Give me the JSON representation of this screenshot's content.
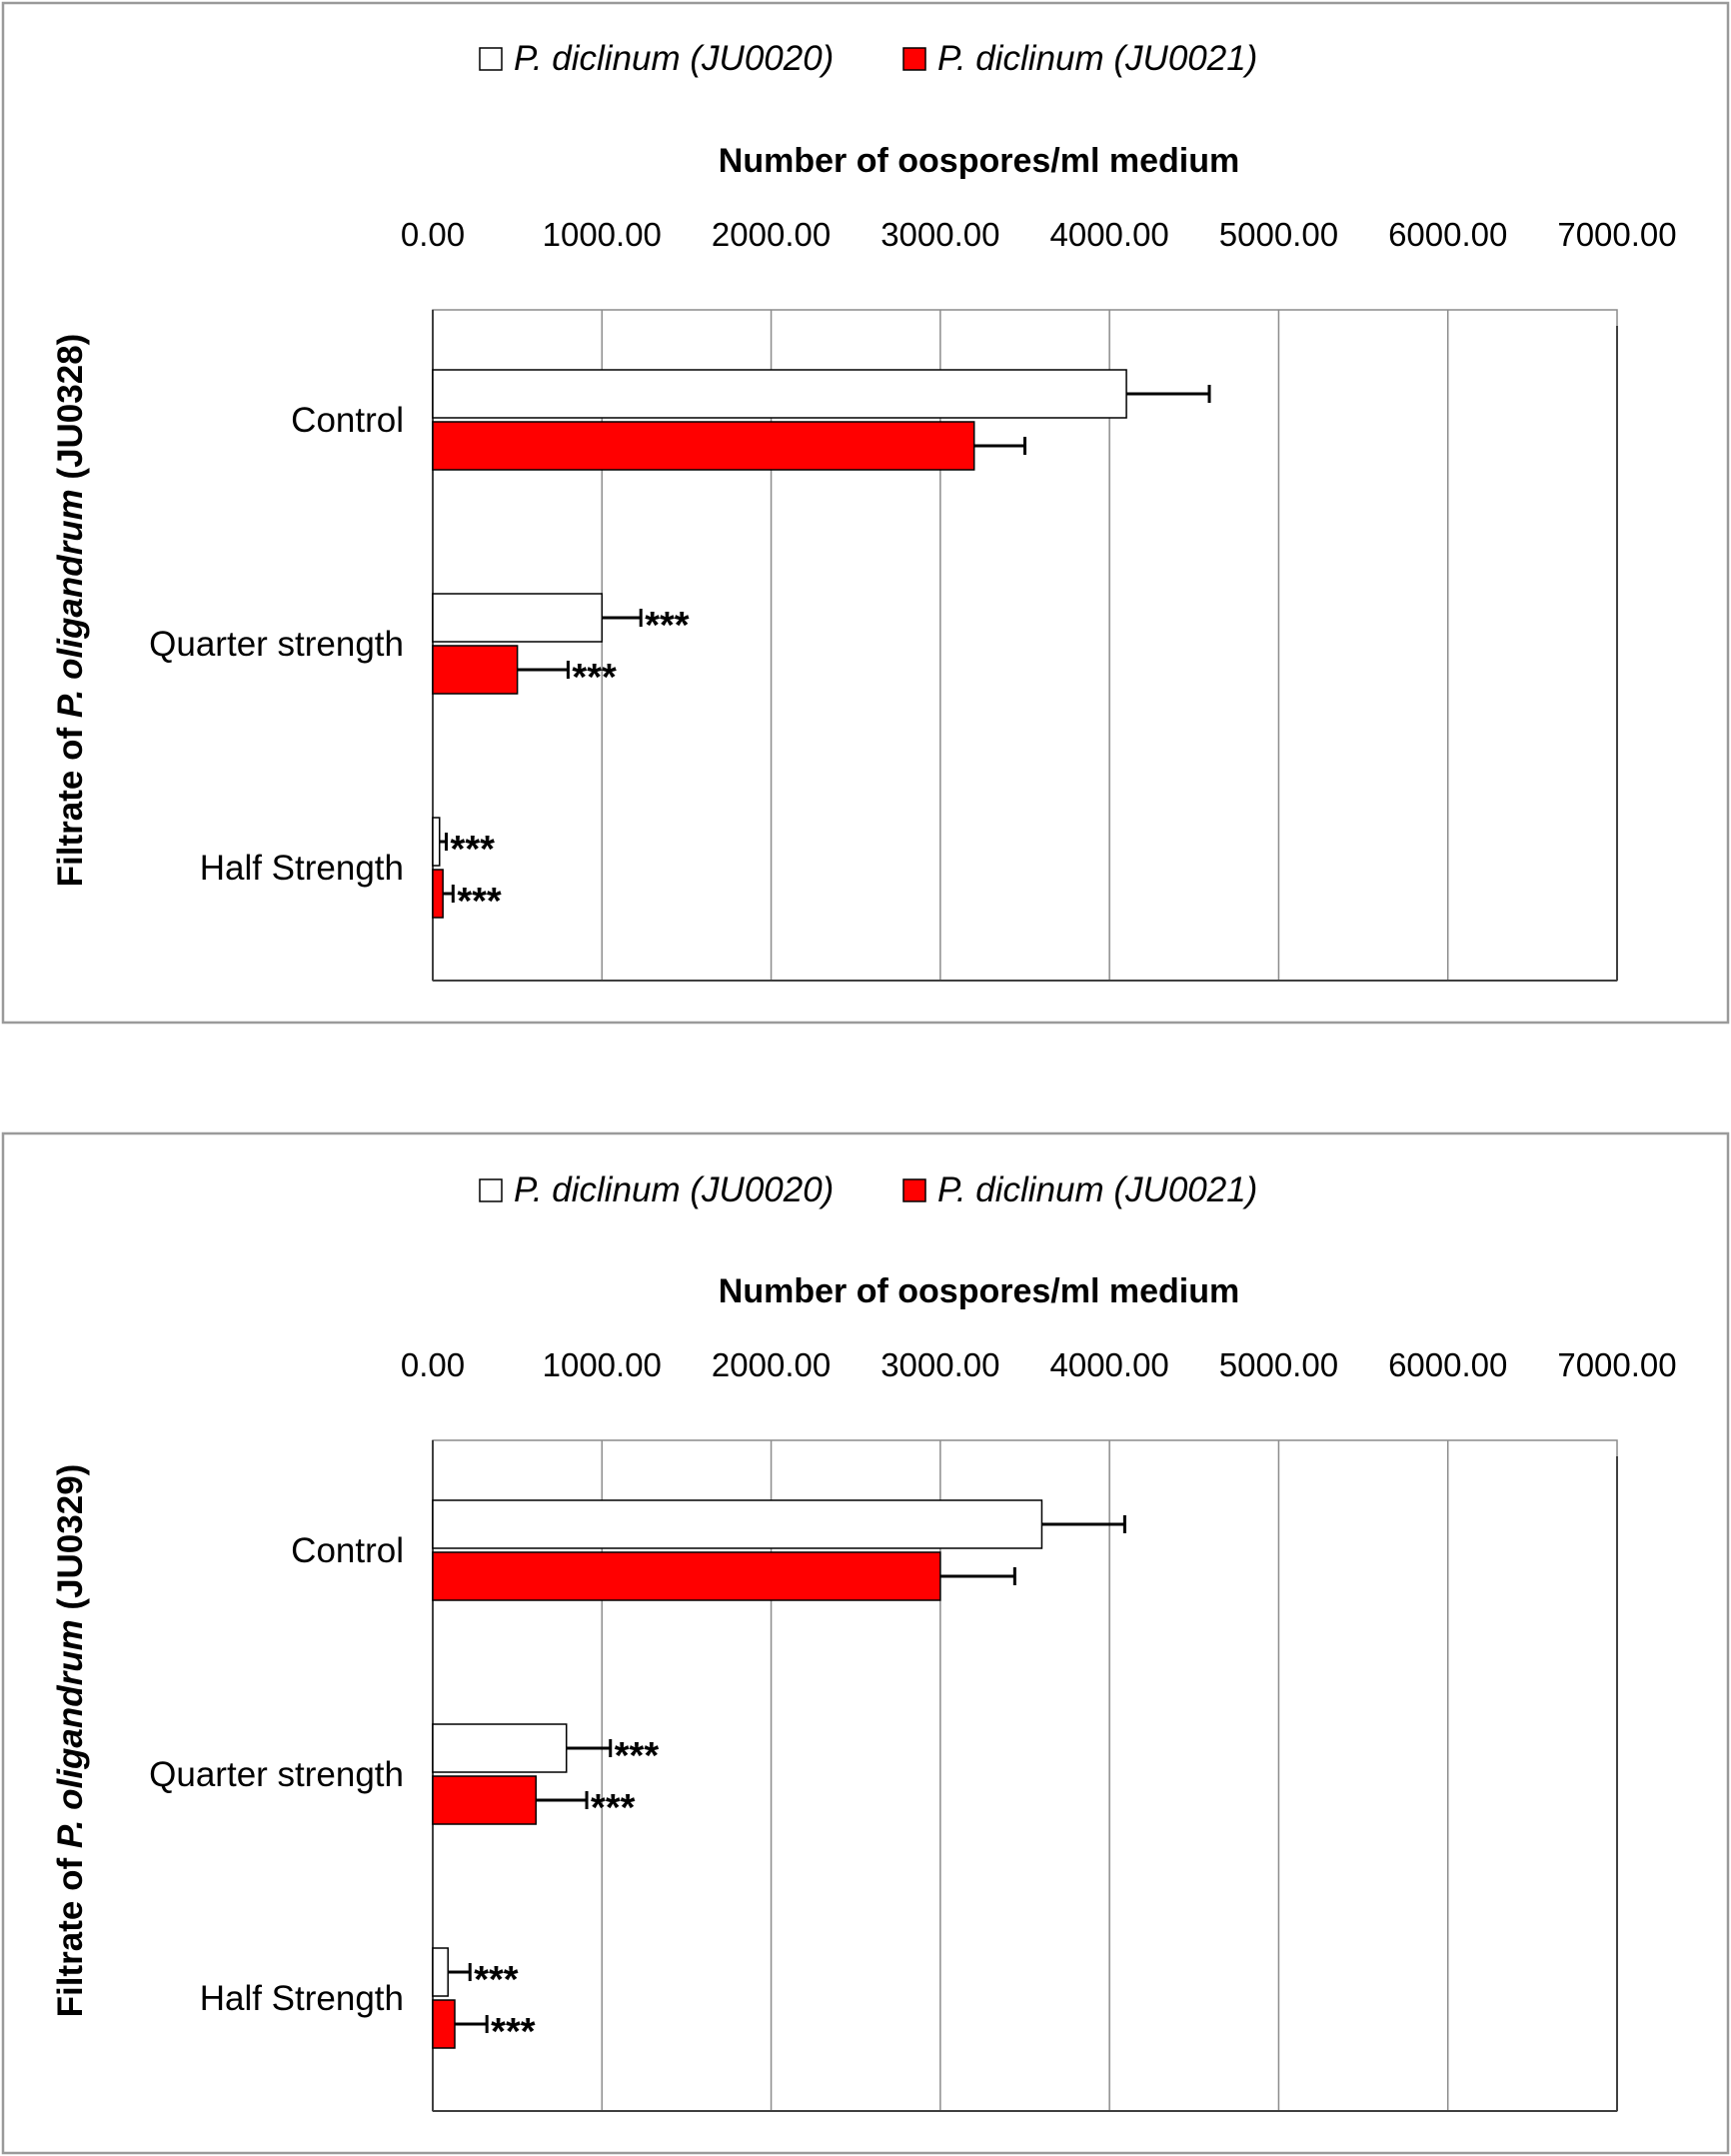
{
  "chart_data": [
    {
      "type": "bar",
      "orientation": "horizontal",
      "xlabel": "Number of oospores/ml medium",
      "ylabel_prefix": "Filtrate of ",
      "ylabel_species": "P. oligandrum",
      "ylabel_suffix": " (JU0328)",
      "xlim": [
        0,
        7000
      ],
      "xticks": [
        "0.00",
        "1000.00",
        "2000.00",
        "3000.00",
        "4000.00",
        "5000.00",
        "6000.00",
        "7000.00"
      ],
      "grid": "vertical",
      "legend_position": "top",
      "categories": [
        "Control",
        "Quarter strength",
        "Half Strength"
      ],
      "series": [
        {
          "name": "P. diclinum (JU0020)",
          "color": "#ffffff",
          "values": [
            4100,
            1000,
            40
          ],
          "errors": [
            490,
            230,
            40
          ],
          "annotations": [
            "",
            "***",
            "***"
          ]
        },
        {
          "name": "P. diclinum (JU0021)",
          "color": "#ff0000",
          "values": [
            3200,
            500,
            60
          ],
          "errors": [
            300,
            300,
            60
          ],
          "annotations": [
            "",
            "***",
            "***"
          ]
        }
      ]
    },
    {
      "type": "bar",
      "orientation": "horizontal",
      "xlabel": "Number of oospores/ml medium",
      "ylabel_prefix": "Filtrate of ",
      "ylabel_species": "P. oligandrum",
      "ylabel_suffix": " (JU0329)",
      "xlim": [
        0,
        7000
      ],
      "xticks": [
        "0.00",
        "1000.00",
        "2000.00",
        "3000.00",
        "4000.00",
        "5000.00",
        "6000.00",
        "7000.00"
      ],
      "grid": "vertical",
      "legend_position": "top",
      "categories": [
        "Control",
        "Quarter strength",
        "Half Strength"
      ],
      "series": [
        {
          "name": "P. diclinum (JU0020)",
          "color": "#ffffff",
          "values": [
            3600,
            790,
            90
          ],
          "errors": [
            490,
            260,
            130
          ],
          "annotations": [
            "",
            "***",
            "***"
          ]
        },
        {
          "name": "P. diclinum (JU0021)",
          "color": "#ff0000",
          "values": [
            3000,
            610,
            130
          ],
          "errors": [
            440,
            300,
            190
          ],
          "annotations": [
            "",
            "***",
            "***"
          ]
        }
      ]
    }
  ]
}
